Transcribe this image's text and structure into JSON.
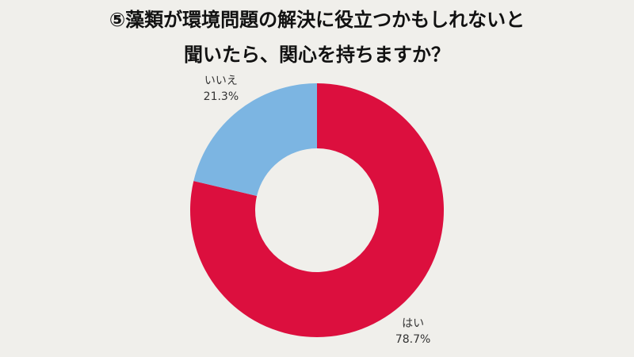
{
  "chart_data": {
    "type": "donut",
    "title": [
      "⑤藻類が環境問題の解決に役立つかもしれないと",
      "聞いたら、関心を持ちますか？"
    ],
    "categories": [
      "はい",
      "いいえ"
    ],
    "values": [
      78.7,
      21.3
    ],
    "value_labels": [
      "78.7%",
      "21.3%"
    ],
    "colors": [
      "#dc0f3e",
      "#7cb5e2"
    ]
  }
}
